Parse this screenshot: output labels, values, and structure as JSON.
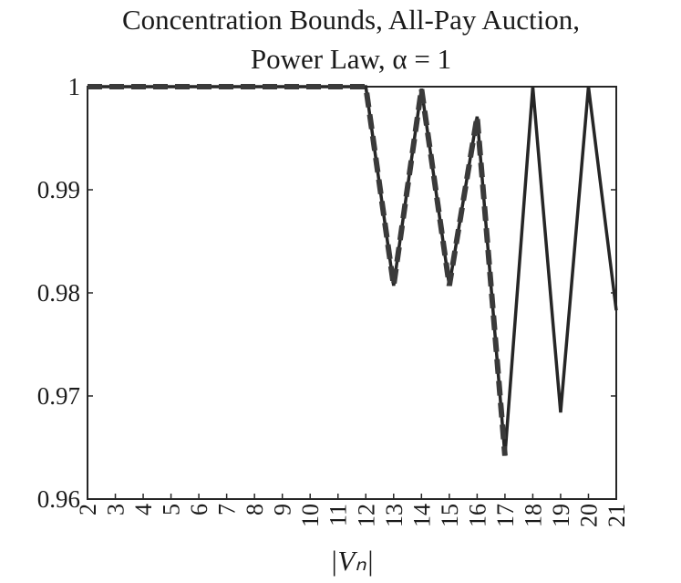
{
  "chart_data": {
    "type": "line",
    "title": [
      "Concentration Bounds, All-Pay Auction,",
      "Power Law, α = 1"
    ],
    "xlabel": "|Vₙ|",
    "x": [
      2,
      3,
      4,
      5,
      6,
      7,
      8,
      9,
      10,
      11,
      12,
      13,
      14,
      15,
      16,
      17,
      18,
      19,
      20,
      21
    ],
    "series": [
      {
        "color": "#262626",
        "dashed": false,
        "values": [
          1,
          1,
          1,
          1,
          1,
          1,
          1,
          1,
          1,
          1,
          1,
          0.9807,
          0.9998,
          0.9807,
          0.9971,
          0.9642,
          1,
          0.9684,
          1,
          0.9783
        ]
      },
      {
        "color": "#3a3a3a",
        "dashed": true,
        "values": [
          1,
          1,
          1,
          1,
          1,
          1,
          1,
          1,
          1,
          1,
          1,
          0.9807,
          0.9998,
          0.9807,
          0.9971,
          0.9642,
          null,
          null,
          null,
          null
        ]
      }
    ],
    "xlim": [
      2,
      21
    ],
    "xticks": [
      2,
      3,
      4,
      5,
      6,
      7,
      8,
      9,
      10,
      11,
      12,
      13,
      14,
      15,
      16,
      17,
      18,
      19,
      20,
      21
    ],
    "ylim": [
      0.96,
      1
    ],
    "yticks": [
      0.96,
      0.97,
      0.98,
      0.99,
      1
    ]
  }
}
